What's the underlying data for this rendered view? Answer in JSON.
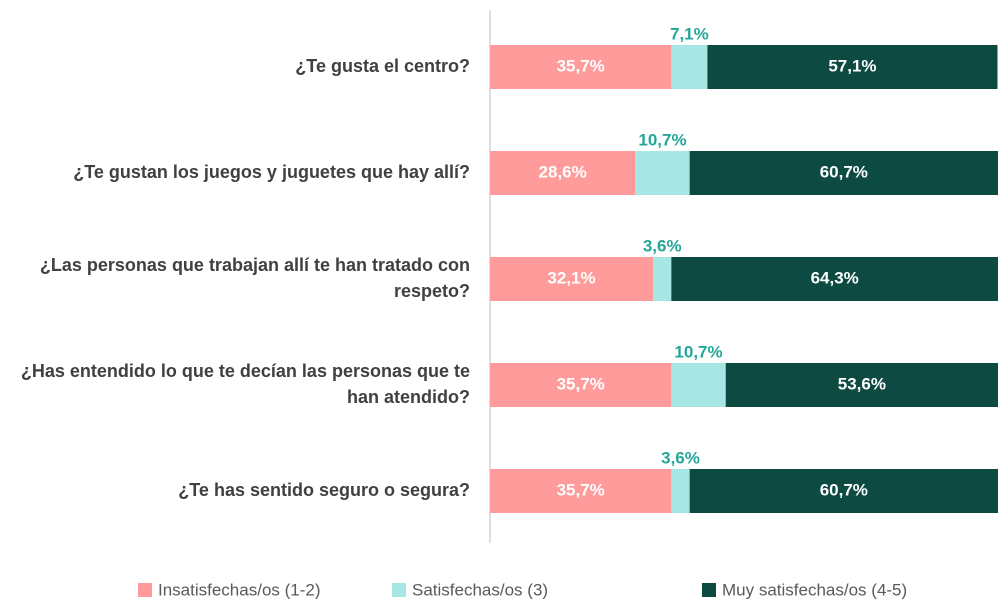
{
  "chart_data": {
    "type": "stacked-bar-horizontal",
    "categories": [
      "¿Te gusta el centro?",
      "¿Te gustan los juegos y juguetes que hay allí?",
      "¿Las personas que trabajan allí te han tratado con respeto?",
      "¿Has entendido lo que te decían las personas que te han atendido?",
      "¿Te has sentido seguro o segura?"
    ],
    "series": [
      {
        "name": "Insatisfechas/os (1-2)",
        "color": "#ff9b9b",
        "values": [
          35.7,
          28.6,
          32.1,
          35.7,
          35.7
        ],
        "value_labels": [
          "35,7%",
          "28,6%",
          "32,1%",
          "35,7%",
          "35,7%"
        ],
        "label_color": "#ffffff"
      },
      {
        "name": "Satisfechas/os (3)",
        "color": "#a6e7e3",
        "values": [
          7.1,
          10.7,
          3.6,
          10.7,
          3.6
        ],
        "value_labels": [
          "7,1%",
          "10,7%",
          "3,6%",
          "10,7%",
          "3,6%"
        ],
        "label_color": "#26a69a"
      },
      {
        "name": "Muy satisfechas/os (4-5)",
        "color": "#0c4a42",
        "values": [
          57.1,
          60.7,
          64.3,
          53.6,
          60.7
        ],
        "value_labels": [
          "57,1%",
          "60,7%",
          "64,3%",
          "53,6%",
          "60,7%"
        ],
        "label_color": "#ffffff"
      }
    ]
  }
}
